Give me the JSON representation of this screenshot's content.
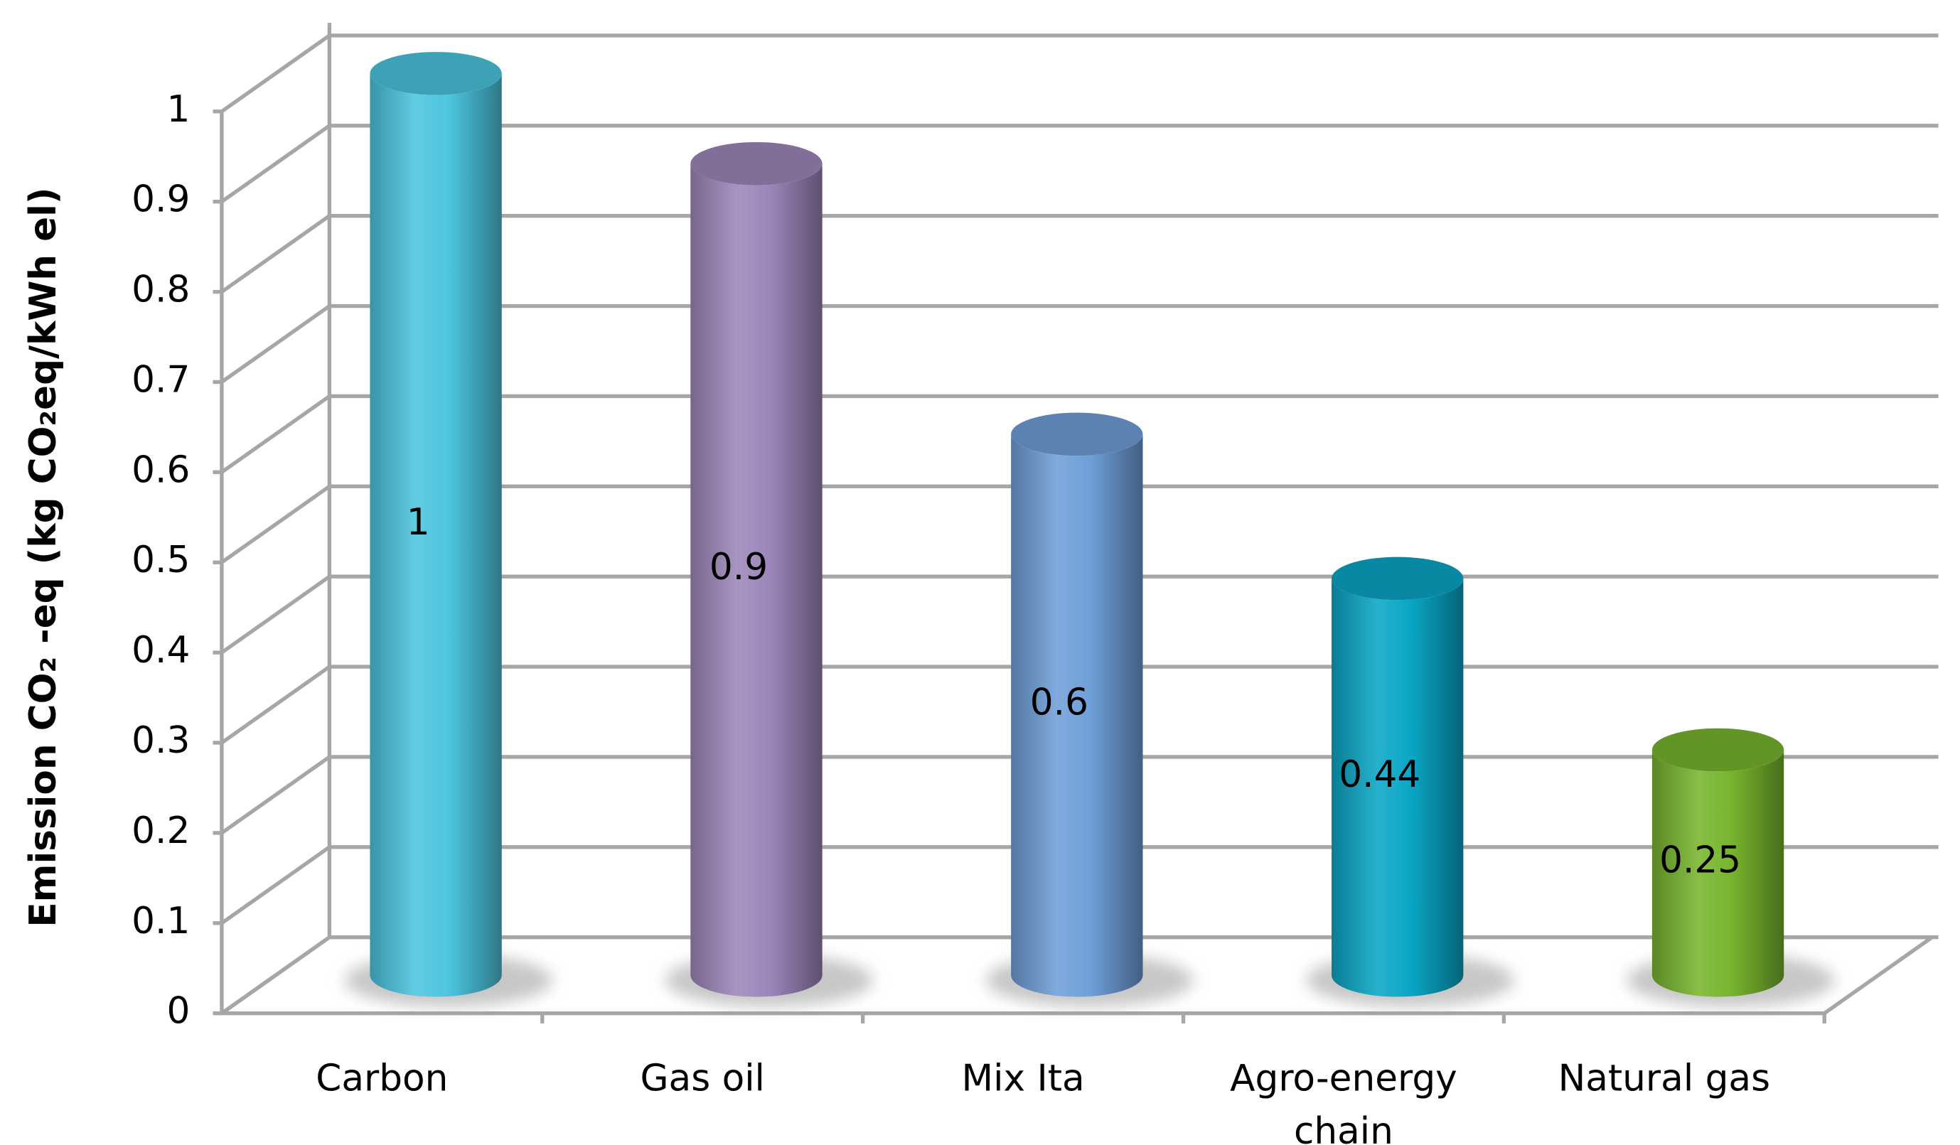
{
  "chart_data": {
    "type": "cylinder-bar",
    "y_label": "Emission CO₂ -eq (kg CO₂eq/kWh el)",
    "categories": [
      "Carbon",
      "Gas oil",
      "Mix Ita",
      "Agro-energy chain",
      "Natural gas"
    ],
    "values": [
      1,
      0.9,
      0.6,
      0.44,
      0.25
    ],
    "colors": [
      "#4cc6df",
      "#9d86ba",
      "#6f9fd8",
      "#0aa6c6",
      "#78b52e"
    ],
    "ylim": [
      0,
      1
    ],
    "yticks": [
      0,
      0.1,
      0.2,
      0.3,
      0.4,
      0.5,
      0.6,
      0.7,
      0.8,
      0.9,
      1
    ],
    "grid": true
  }
}
